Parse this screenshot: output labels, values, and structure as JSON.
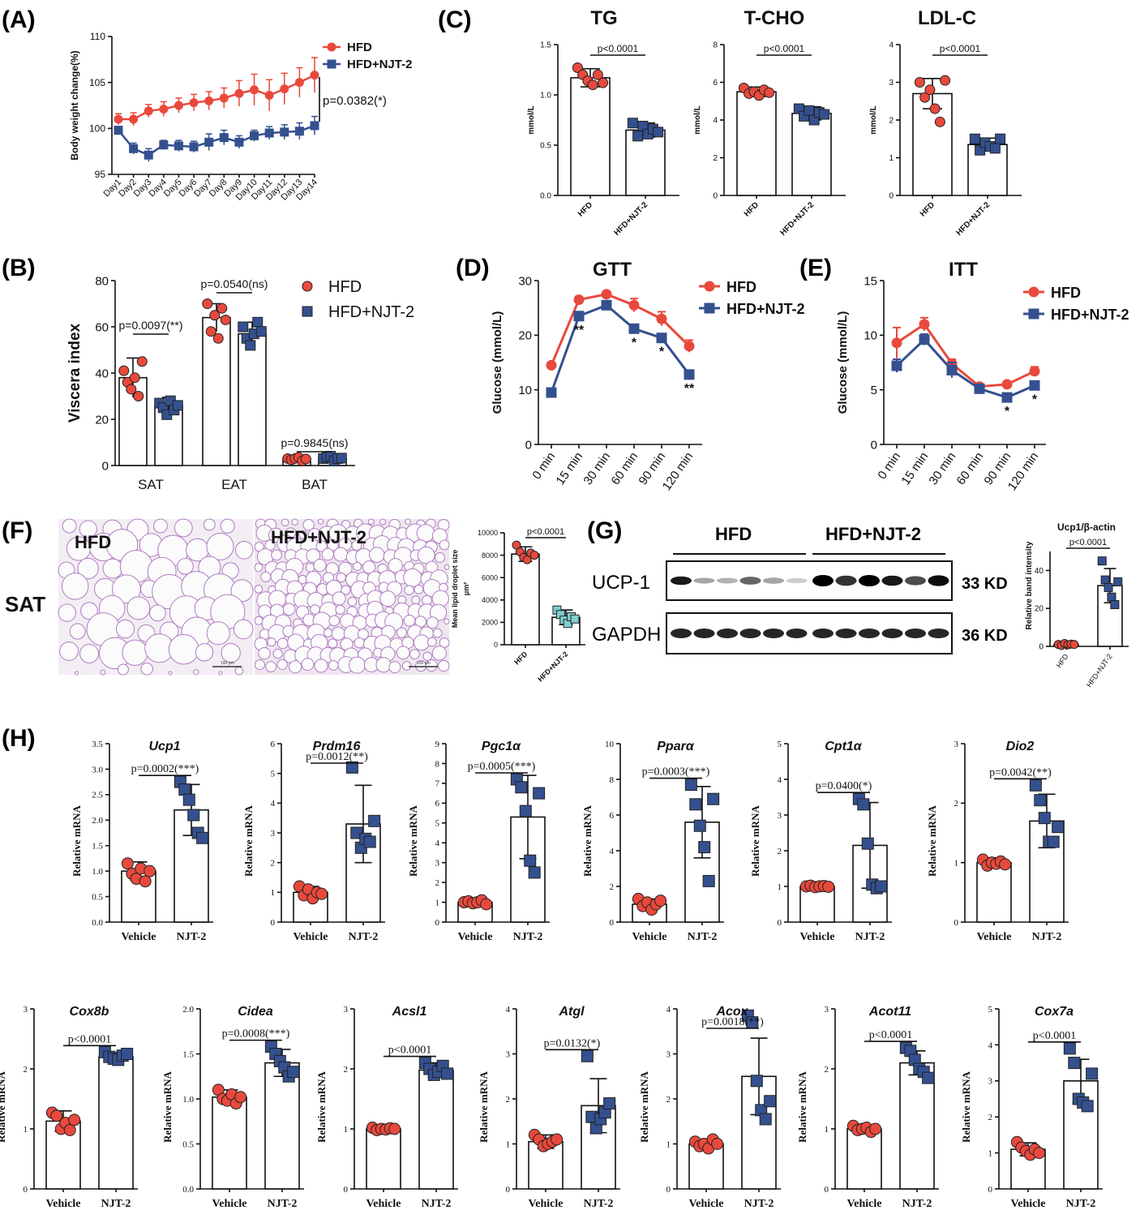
{
  "colors": {
    "hfd": "#e8493c",
    "njt": "#34508f",
    "njt_light": "#7ecfcf",
    "axis": "#111111"
  },
  "panel_letters": [
    "(A)",
    "(B)",
    "(C)",
    "(D)",
    "(E)",
    "(F)",
    "(G)",
    "(H)"
  ],
  "chart_data": [
    {
      "panel": "A",
      "type": "line",
      "ylabel": "Body weight change(%)",
      "ylim": [
        95,
        110
      ],
      "yticks": [
        95,
        100,
        105,
        110
      ],
      "categories": [
        "Day1",
        "Day2",
        "Day3",
        "Day4",
        "Day5",
        "Day6",
        "Day7",
        "Day8",
        "Day9",
        "Day10",
        "Day11",
        "Day12",
        "Day13",
        "Day14"
      ],
      "series": [
        {
          "name": "HFD",
          "values": [
            101.0,
            101.0,
            101.9,
            102.1,
            102.5,
            102.8,
            103.0,
            103.3,
            103.8,
            104.2,
            103.6,
            104.3,
            105.0,
            105.8
          ],
          "err": [
            0.6,
            0.7,
            0.7,
            0.8,
            0.8,
            0.9,
            1.0,
            1.1,
            1.4,
            1.7,
            1.7,
            1.7,
            1.6,
            1.9
          ]
        },
        {
          "name": "HFD+NJT-2",
          "values": [
            99.8,
            97.8,
            97.1,
            98.2,
            98.1,
            98.0,
            98.5,
            99.0,
            98.5,
            99.2,
            99.5,
            99.6,
            99.7,
            100.3
          ],
          "err": [
            0.4,
            0.6,
            0.7,
            0.5,
            0.6,
            0.6,
            0.9,
            0.8,
            0.7,
            0.6,
            0.7,
            0.8,
            0.9,
            1.0
          ]
        }
      ],
      "annotation": "p=0.0382(*)"
    },
    {
      "panel": "B",
      "type": "bar",
      "ylabel": "Viscera index",
      "ylim": [
        0,
        80
      ],
      "yticks": [
        0,
        20,
        40,
        60,
        80
      ],
      "categories": [
        "SAT",
        "EAT",
        "BAT"
      ],
      "series": [
        {
          "name": "HFD",
          "values": [
            38,
            64,
            3
          ],
          "err": [
            8.5,
            6,
            1
          ],
          "points": [
            [
              41,
              36,
              33,
              38,
              30,
              45
            ],
            [
              70,
              58,
              65,
              55,
              68,
              63
            ],
            [
              3,
              2.5,
              3,
              3.5,
              2,
              2.8
            ]
          ]
        },
        {
          "name": "HFD+NJT-2",
          "values": [
            26,
            57,
            3
          ],
          "err": [
            3.5,
            5,
            1.5
          ],
          "points": [
            [
              27,
              25,
              22,
              28,
              24,
              26
            ],
            [
              60,
              55,
              52,
              57,
              62,
              58
            ],
            [
              3,
              3.5,
              4,
              2,
              3,
              3.2
            ]
          ]
        }
      ],
      "pvalues": [
        "p=0.0097(**)",
        "p=0.0540(ns)",
        "p=0.9845(ns)"
      ]
    },
    {
      "panel": "C1",
      "type": "bar",
      "title": "TG",
      "ylabel": "mmol/L",
      "ylim": [
        0,
        1.5
      ],
      "yticks": [
        "0.0",
        "0.5",
        "1.0",
        "1.5"
      ],
      "categories": [
        "HFD",
        "HFD+NJT-2"
      ],
      "values": [
        1.17,
        0.65
      ],
      "err": [
        0.09,
        0.07
      ],
      "points": [
        [
          1.27,
          1.2,
          1.14,
          1.1,
          1.2,
          1.12
        ],
        [
          0.72,
          0.59,
          0.69,
          0.61,
          0.66,
          0.63
        ]
      ],
      "pvalue": "p<0.0001"
    },
    {
      "panel": "C2",
      "type": "bar",
      "title": "T-CHO",
      "ylabel": "mmol/L",
      "ylim": [
        0,
        8
      ],
      "yticks": [
        "0",
        "2",
        "4",
        "6",
        "8"
      ],
      "categories": [
        "HFD",
        "HFD+NJT-2"
      ],
      "values": [
        5.5,
        4.35
      ],
      "err": [
        0.25,
        0.35
      ],
      "points": [
        [
          5.7,
          5.4,
          5.5,
          5.3,
          5.6,
          5.45
        ],
        [
          4.6,
          4.2,
          4.5,
          4.0,
          4.4,
          4.3
        ]
      ],
      "pvalue": "p<0.0001"
    },
    {
      "panel": "C3",
      "type": "bar",
      "title": "LDL-C",
      "ylabel": "mmol/L",
      "ylim": [
        0,
        4
      ],
      "yticks": [
        "0",
        "1",
        "2",
        "3",
        "4"
      ],
      "categories": [
        "HFD",
        "HFD+NJT-2"
      ],
      "values": [
        2.7,
        1.35
      ],
      "err": [
        0.4,
        0.17
      ],
      "points": [
        [
          3.0,
          2.6,
          2.8,
          2.3,
          1.95,
          3.05
        ],
        [
          1.5,
          1.2,
          1.4,
          1.3,
          1.25,
          1.5
        ]
      ],
      "pvalue": "p<0.0001"
    },
    {
      "panel": "D",
      "type": "line",
      "title": "GTT",
      "ylabel": "Glucose (mmol/L)",
      "ylim": [
        0,
        30
      ],
      "yticks": [
        0,
        10,
        20,
        30
      ],
      "categories": [
        "0 min",
        "15 min",
        "30 min",
        "60 min",
        "90 min",
        "120 min"
      ],
      "series": [
        {
          "name": "HFD",
          "values": [
            14.5,
            26.5,
            27.5,
            25.5,
            23,
            18
          ],
          "err": [
            0.3,
            0.6,
            0.5,
            1.2,
            1.3,
            1.1
          ]
        },
        {
          "name": "HFD+NJT-2",
          "values": [
            9.5,
            23.5,
            25.5,
            21.2,
            19.5,
            12.8
          ],
          "err": [
            0.4,
            0.5,
            0.6,
            0.6,
            0.7,
            0.6
          ]
        }
      ],
      "stars": [
        "",
        "**",
        "",
        "*",
        "*",
        "**"
      ]
    },
    {
      "panel": "E",
      "type": "line",
      "title": "ITT",
      "ylabel": "Glucose (mmol/L)",
      "ylim": [
        0,
        15
      ],
      "yticks": [
        0,
        5,
        10,
        15
      ],
      "categories": [
        "0 min",
        "15 min",
        "30 min",
        "60 min",
        "90 min",
        "120 min"
      ],
      "series": [
        {
          "name": "HFD",
          "values": [
            9.3,
            11.0,
            7.4,
            5.3,
            5.5,
            6.7
          ],
          "err": [
            1.4,
            0.6,
            0.4,
            0.2,
            0.2,
            0.4
          ]
        },
        {
          "name": "HFD+NJT-2",
          "values": [
            7.2,
            9.6,
            6.8,
            5.1,
            4.3,
            5.4
          ],
          "err": [
            0.6,
            0.5,
            0.7,
            0.2,
            0.2,
            0.2
          ]
        }
      ],
      "stars": [
        "",
        "",
        "",
        "",
        "*",
        "*"
      ]
    },
    {
      "panel": "F",
      "type": "bar",
      "ylabel": "Mean lipid droplet size",
      "ylabel2": "μm²",
      "ylim": [
        0,
        10000
      ],
      "yticks": [
        "0",
        "2000",
        "4000",
        "6000",
        "8000",
        "10000"
      ],
      "categories": [
        "HFD",
        "HFD+NJT-2"
      ],
      "values": [
        8100,
        2450
      ],
      "err": [
        650,
        650
      ],
      "points": [
        [
          8900,
          8300,
          7800,
          7600,
          8200,
          8000
        ],
        [
          3100,
          2700,
          2200,
          1900,
          2500,
          2300
        ]
      ],
      "pvalue": "p<0.0001"
    },
    {
      "panel": "G",
      "type": "bar",
      "title": "Ucp1/β-actin",
      "ylabel": "Relative band intensity",
      "ylim": [
        0,
        50
      ],
      "yticks": [
        "0",
        "20",
        "40"
      ],
      "categories": [
        "HFD",
        "HFD+NJT-2"
      ],
      "values": [
        1,
        32
      ],
      "err": [
        0.8,
        9
      ],
      "points": [
        [
          1,
          0.5,
          1.5,
          0.8,
          1.2,
          1
        ],
        [
          45,
          35,
          31,
          26,
          22,
          34
        ]
      ],
      "pvalue": "p<0.0001"
    }
  ],
  "panel_F": {
    "tissue": "SAT",
    "img1_label": "HFD",
    "img2_label": "HFD+NJT-2",
    "scale": "100 μm"
  },
  "panel_G": {
    "group1": "HFD",
    "group2": "HFD+NJT-2",
    "rows": [
      "UCP-1",
      "GAPDH"
    ],
    "sizes": [
      "33 KD",
      "36 KD"
    ]
  },
  "panel_H": {
    "ylabel": "Relative mRNA",
    "categories": [
      "Vehicle",
      "NJT-2"
    ],
    "genes": [
      {
        "name": "Ucp1",
        "ymax": 3.5,
        "step": 0.5,
        "dec": 1,
        "vals": [
          1.0,
          2.2
        ],
        "err": [
          0.18,
          0.5
        ],
        "pts": [
          [
            1.15,
            0.95,
            0.85,
            1.05,
            0.8,
            1.0
          ],
          [
            2.75,
            2.6,
            2.4,
            2.1,
            1.75,
            1.65
          ]
        ],
        "p": "p=0.0002(***)"
      },
      {
        "name": "Prdm16",
        "ymax": 6,
        "step": 1,
        "dec": 0,
        "vals": [
          1.0,
          3.3
        ],
        "err": [
          0.2,
          1.3
        ],
        "pts": [
          [
            1.2,
            0.9,
            1.1,
            0.8,
            1.0,
            0.95
          ],
          [
            5.2,
            3.0,
            2.5,
            2.8,
            2.7,
            3.4
          ]
        ],
        "p": "p=0.0012(**)"
      },
      {
        "name": "Pgc1α",
        "ymax": 9,
        "step": 1,
        "dec": 0,
        "vals": [
          1.0,
          5.3
        ],
        "err": [
          0.1,
          2.1
        ],
        "pts": [
          [
            1.0,
            1.05,
            0.95,
            1.0,
            1.1,
            0.9
          ],
          [
            7.2,
            6.8,
            5.6,
            3.1,
            2.5,
            6.5
          ]
        ],
        "p": "p=0.0005(***)"
      },
      {
        "name": "Pparα",
        "ymax": 10,
        "step": 2,
        "dec": 0,
        "vals": [
          1.0,
          5.6
        ],
        "err": [
          0.3,
          2.0
        ],
        "pts": [
          [
            1.3,
            0.9,
            1.1,
            0.7,
            1.0,
            1.2
          ],
          [
            7.7,
            6.6,
            5.4,
            4.2,
            2.3,
            6.9
          ]
        ],
        "p": "p=0.0003(***)"
      },
      {
        "name": "Cpt1α",
        "ymax": 5,
        "step": 1,
        "dec": 0,
        "vals": [
          1.0,
          2.15
        ],
        "err": [
          0.05,
          1.2
        ],
        "pts": [
          [
            1.0,
            1.02,
            0.98,
            1.0,
            1.01,
            0.99
          ],
          [
            3.45,
            3.3,
            2.2,
            1.05,
            0.95,
            1.0
          ]
        ],
        "p": "p=0.0400(*)"
      },
      {
        "name": "Dio2",
        "ymax": 3,
        "step": 1,
        "dec": 0,
        "vals": [
          1.0,
          1.7
        ],
        "err": [
          0.08,
          0.45
        ],
        "pts": [
          [
            1.05,
            0.95,
            1.0,
            0.98,
            1.02,
            0.97
          ],
          [
            2.3,
            2.05,
            1.75,
            1.35,
            1.35,
            1.6
          ]
        ],
        "p": "p=0.0042(**)"
      },
      {
        "name": "Cox8b",
        "ymax": 3,
        "step": 1,
        "dec": 0,
        "vals": [
          1.13,
          2.2
        ],
        "err": [
          0.17,
          0.07
        ],
        "pts": [
          [
            1.27,
            1.22,
            1.0,
            1.1,
            0.98,
            1.15
          ],
          [
            2.28,
            2.2,
            2.17,
            2.15,
            2.22,
            2.25
          ]
        ],
        "p": "p<0.0001"
      },
      {
        "name": "Cidea",
        "ymax": 2.0,
        "step": 0.5,
        "dec": 1,
        "vals": [
          1.02,
          1.4
        ],
        "err": [
          0.08,
          0.15
        ],
        "pts": [
          [
            1.1,
            1.0,
            0.98,
            1.05,
            0.95,
            1.02
          ],
          [
            1.58,
            1.5,
            1.42,
            1.35,
            1.25,
            1.3
          ]
        ],
        "p": "p=0.0008(***)"
      },
      {
        "name": "Acsl1",
        "ymax": 3,
        "step": 1,
        "dec": 0,
        "vals": [
          1.0,
          1.98
        ],
        "err": [
          0.05,
          0.12
        ],
        "pts": [
          [
            1.02,
            0.98,
            1.0,
            0.99,
            1.01,
            1.0
          ],
          [
            2.1,
            2.0,
            1.9,
            1.95,
            2.05,
            1.92
          ]
        ],
        "p": "p<0.0001"
      },
      {
        "name": "Atgl",
        "ymax": 4,
        "step": 1,
        "dec": 0,
        "vals": [
          1.05,
          1.85
        ],
        "err": [
          0.15,
          0.6
        ],
        "pts": [
          [
            1.2,
            1.1,
            0.95,
            1.0,
            1.05,
            1.1
          ],
          [
            2.95,
            1.6,
            1.35,
            1.55,
            1.7,
            1.9
          ]
        ],
        "p": "p=0.0132(*)"
      },
      {
        "name": "Acox",
        "ymax": 4,
        "step": 1,
        "dec": 0,
        "vals": [
          1.0,
          2.5
        ],
        "err": [
          0.1,
          0.85
        ],
        "pts": [
          [
            1.05,
            0.95,
            1.0,
            0.9,
            1.1,
            1.0
          ],
          [
            3.85,
            3.7,
            2.4,
            1.75,
            1.55,
            1.95
          ]
        ],
        "p": "p=0.0018(**)"
      },
      {
        "name": "Acot11",
        "ymax": 3,
        "step": 1,
        "dec": 0,
        "vals": [
          1.0,
          2.1
        ],
        "err": [
          0.05,
          0.2
        ],
        "pts": [
          [
            1.05,
            0.98,
            1.0,
            1.02,
            0.95,
            1.0
          ],
          [
            2.35,
            2.3,
            2.15,
            2.0,
            1.95,
            1.85
          ]
        ],
        "p": "p<0.0001"
      },
      {
        "name": "Cox7a",
        "ymax": 5,
        "step": 1,
        "dec": 0,
        "vals": [
          1.1,
          3.0
        ],
        "err": [
          0.18,
          0.6
        ],
        "pts": [
          [
            1.3,
            1.15,
            1.05,
            0.95,
            1.1,
            1.0
          ],
          [
            3.9,
            3.5,
            2.5,
            2.4,
            2.3,
            3.2
          ]
        ],
        "p": "p<0.0001"
      }
    ]
  }
}
